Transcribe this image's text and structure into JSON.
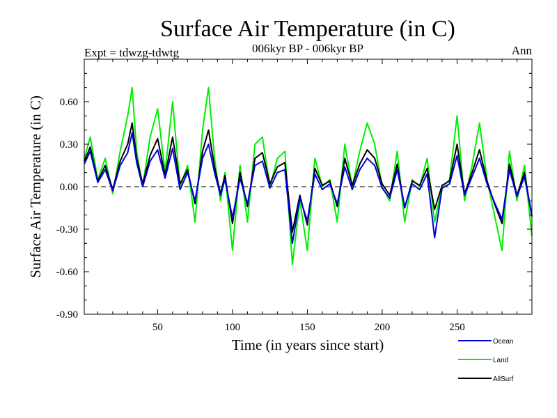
{
  "chart_data": {
    "type": "line",
    "title": "Surface Air Temperature (in C)",
    "subtitle": "006kyr BP - 006kyr BP",
    "experiment": "Expt = tdwzg-tdwtg",
    "season": "Ann",
    "xlabel": "Time (in years since start)",
    "ylabel": "Surface Air Temperature (in C)",
    "xlim": [
      1,
      300
    ],
    "ylim": [
      -0.9,
      0.9
    ],
    "xticks": [
      50,
      100,
      150,
      200,
      250
    ],
    "xtick_labels": [
      "50",
      "100",
      "150",
      "200",
      "250"
    ],
    "yticks": [
      -0.9,
      -0.6,
      -0.3,
      0.0,
      0.3,
      0.6
    ],
    "ytick_labels": [
      "-0.90",
      "-0.60",
      "-0.30",
      "0.00",
      "0.30",
      "0.60"
    ],
    "reference_line": 0.0,
    "legend_position": "bottom-right",
    "series": [
      {
        "name": "Land",
        "color": "#00ee00",
        "x": [
          1,
          5,
          10,
          15,
          20,
          25,
          30,
          33,
          36,
          40,
          45,
          50,
          55,
          60,
          65,
          70,
          75,
          80,
          84,
          88,
          92,
          95,
          100,
          105,
          110,
          115,
          120,
          125,
          130,
          135,
          140,
          145,
          150,
          155,
          160,
          165,
          170,
          175,
          180,
          185,
          190,
          195,
          200,
          205,
          210,
          215,
          220,
          225,
          230,
          235,
          240,
          245,
          250,
          255,
          260,
          265,
          270,
          275,
          280,
          285,
          290,
          295,
          300
        ],
        "values": [
          0.2,
          0.35,
          0.05,
          0.2,
          -0.05,
          0.25,
          0.5,
          0.7,
          0.25,
          0.0,
          0.35,
          0.55,
          0.1,
          0.6,
          0.0,
          0.15,
          -0.25,
          0.4,
          0.7,
          0.2,
          -0.1,
          0.1,
          -0.45,
          0.15,
          -0.25,
          0.3,
          0.35,
          0.0,
          0.2,
          0.25,
          -0.55,
          -0.1,
          -0.45,
          0.2,
          0.0,
          0.05,
          -0.25,
          0.3,
          0.0,
          0.25,
          0.45,
          0.3,
          0.0,
          -0.1,
          0.25,
          -0.25,
          0.05,
          0.0,
          0.2,
          -0.25,
          0.0,
          0.05,
          0.5,
          -0.1,
          0.15,
          0.45,
          0.05,
          -0.2,
          -0.45,
          0.25,
          -0.1,
          0.15,
          -0.35
        ]
      },
      {
        "name": "AllSurf",
        "color": "#000000",
        "x": [
          1,
          5,
          10,
          15,
          20,
          25,
          30,
          33,
          36,
          40,
          45,
          50,
          55,
          60,
          65,
          70,
          75,
          80,
          84,
          88,
          92,
          95,
          100,
          105,
          110,
          115,
          120,
          125,
          130,
          135,
          140,
          145,
          150,
          155,
          160,
          165,
          170,
          175,
          180,
          185,
          190,
          195,
          200,
          205,
          210,
          215,
          220,
          225,
          230,
          235,
          240,
          245,
          250,
          255,
          260,
          265,
          270,
          275,
          280,
          285,
          290,
          295,
          300
        ],
        "values": [
          0.18,
          0.28,
          0.04,
          0.15,
          -0.02,
          0.18,
          0.3,
          0.45,
          0.2,
          0.02,
          0.22,
          0.34,
          0.08,
          0.35,
          0.02,
          0.12,
          -0.12,
          0.25,
          0.4,
          0.14,
          -0.05,
          0.08,
          -0.26,
          0.1,
          -0.14,
          0.2,
          0.24,
          0.02,
          0.14,
          0.17,
          -0.32,
          -0.06,
          -0.27,
          0.13,
          0.01,
          0.04,
          -0.14,
          0.2,
          0.01,
          0.16,
          0.26,
          0.2,
          0.02,
          -0.06,
          0.16,
          -0.15,
          0.04,
          0.01,
          0.13,
          -0.16,
          0.01,
          0.04,
          0.3,
          -0.05,
          0.1,
          0.26,
          0.04,
          -0.12,
          -0.26,
          0.16,
          -0.06,
          0.1,
          -0.21
        ]
      },
      {
        "name": "Ocean",
        "color": "#0000dd",
        "x": [
          1,
          5,
          10,
          15,
          20,
          25,
          30,
          33,
          36,
          40,
          45,
          50,
          55,
          60,
          65,
          70,
          75,
          80,
          84,
          88,
          92,
          95,
          100,
          105,
          110,
          115,
          120,
          125,
          130,
          135,
          140,
          145,
          150,
          155,
          160,
          165,
          170,
          175,
          180,
          185,
          190,
          195,
          200,
          205,
          210,
          215,
          220,
          225,
          230,
          235,
          240,
          245,
          250,
          255,
          260,
          265,
          270,
          275,
          280,
          285,
          290,
          295,
          300
        ],
        "values": [
          0.16,
          0.25,
          0.03,
          0.12,
          -0.03,
          0.15,
          0.24,
          0.38,
          0.17,
          0.0,
          0.18,
          0.26,
          0.06,
          0.27,
          -0.02,
          0.1,
          -0.1,
          0.2,
          0.3,
          0.1,
          -0.06,
          0.05,
          -0.22,
          0.06,
          -0.12,
          0.15,
          0.18,
          -0.01,
          0.1,
          0.12,
          -0.4,
          -0.08,
          -0.24,
          0.09,
          -0.02,
          0.02,
          -0.12,
          0.14,
          -0.02,
          0.12,
          0.2,
          0.15,
          -0.01,
          -0.08,
          0.12,
          -0.14,
          0.02,
          -0.02,
          0.09,
          -0.36,
          -0.01,
          0.02,
          0.22,
          -0.06,
          0.07,
          0.2,
          0.02,
          -0.11,
          -0.23,
          0.12,
          -0.07,
          0.07,
          -0.2
        ]
      }
    ]
  }
}
